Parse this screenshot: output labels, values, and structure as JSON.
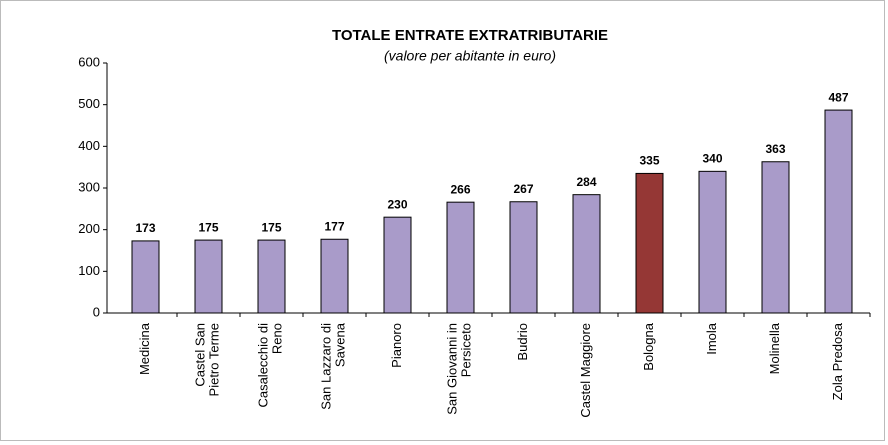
{
  "chart_data": {
    "type": "bar",
    "title": "TOTALE ENTRATE EXTRATRIBUTARIE",
    "subtitle": "(valore per abitante in euro)",
    "categories": [
      "Medicina",
      "Castel San\nPietro Terme",
      "Casalecchio di\nReno",
      "San Lazzaro di\nSavena",
      "Pianoro",
      "San Giovanni in\nPersiceto",
      "Budrio",
      "Castel Maggiore",
      "Bologna",
      "Imola",
      "Molinella",
      "Zola Predosa"
    ],
    "values": [
      173,
      175,
      175,
      177,
      230,
      266,
      267,
      284,
      335,
      340,
      363,
      487
    ],
    "colors": [
      "#a99bc9",
      "#a99bc9",
      "#a99bc9",
      "#a99bc9",
      "#a99bc9",
      "#a99bc9",
      "#a99bc9",
      "#a99bc9",
      "#953735",
      "#a99bc9",
      "#a99bc9",
      "#a99bc9"
    ],
    "ylim": [
      0,
      600
    ],
    "yticks": [
      0,
      100,
      200,
      300,
      400,
      500,
      600
    ],
    "grid": false
  }
}
